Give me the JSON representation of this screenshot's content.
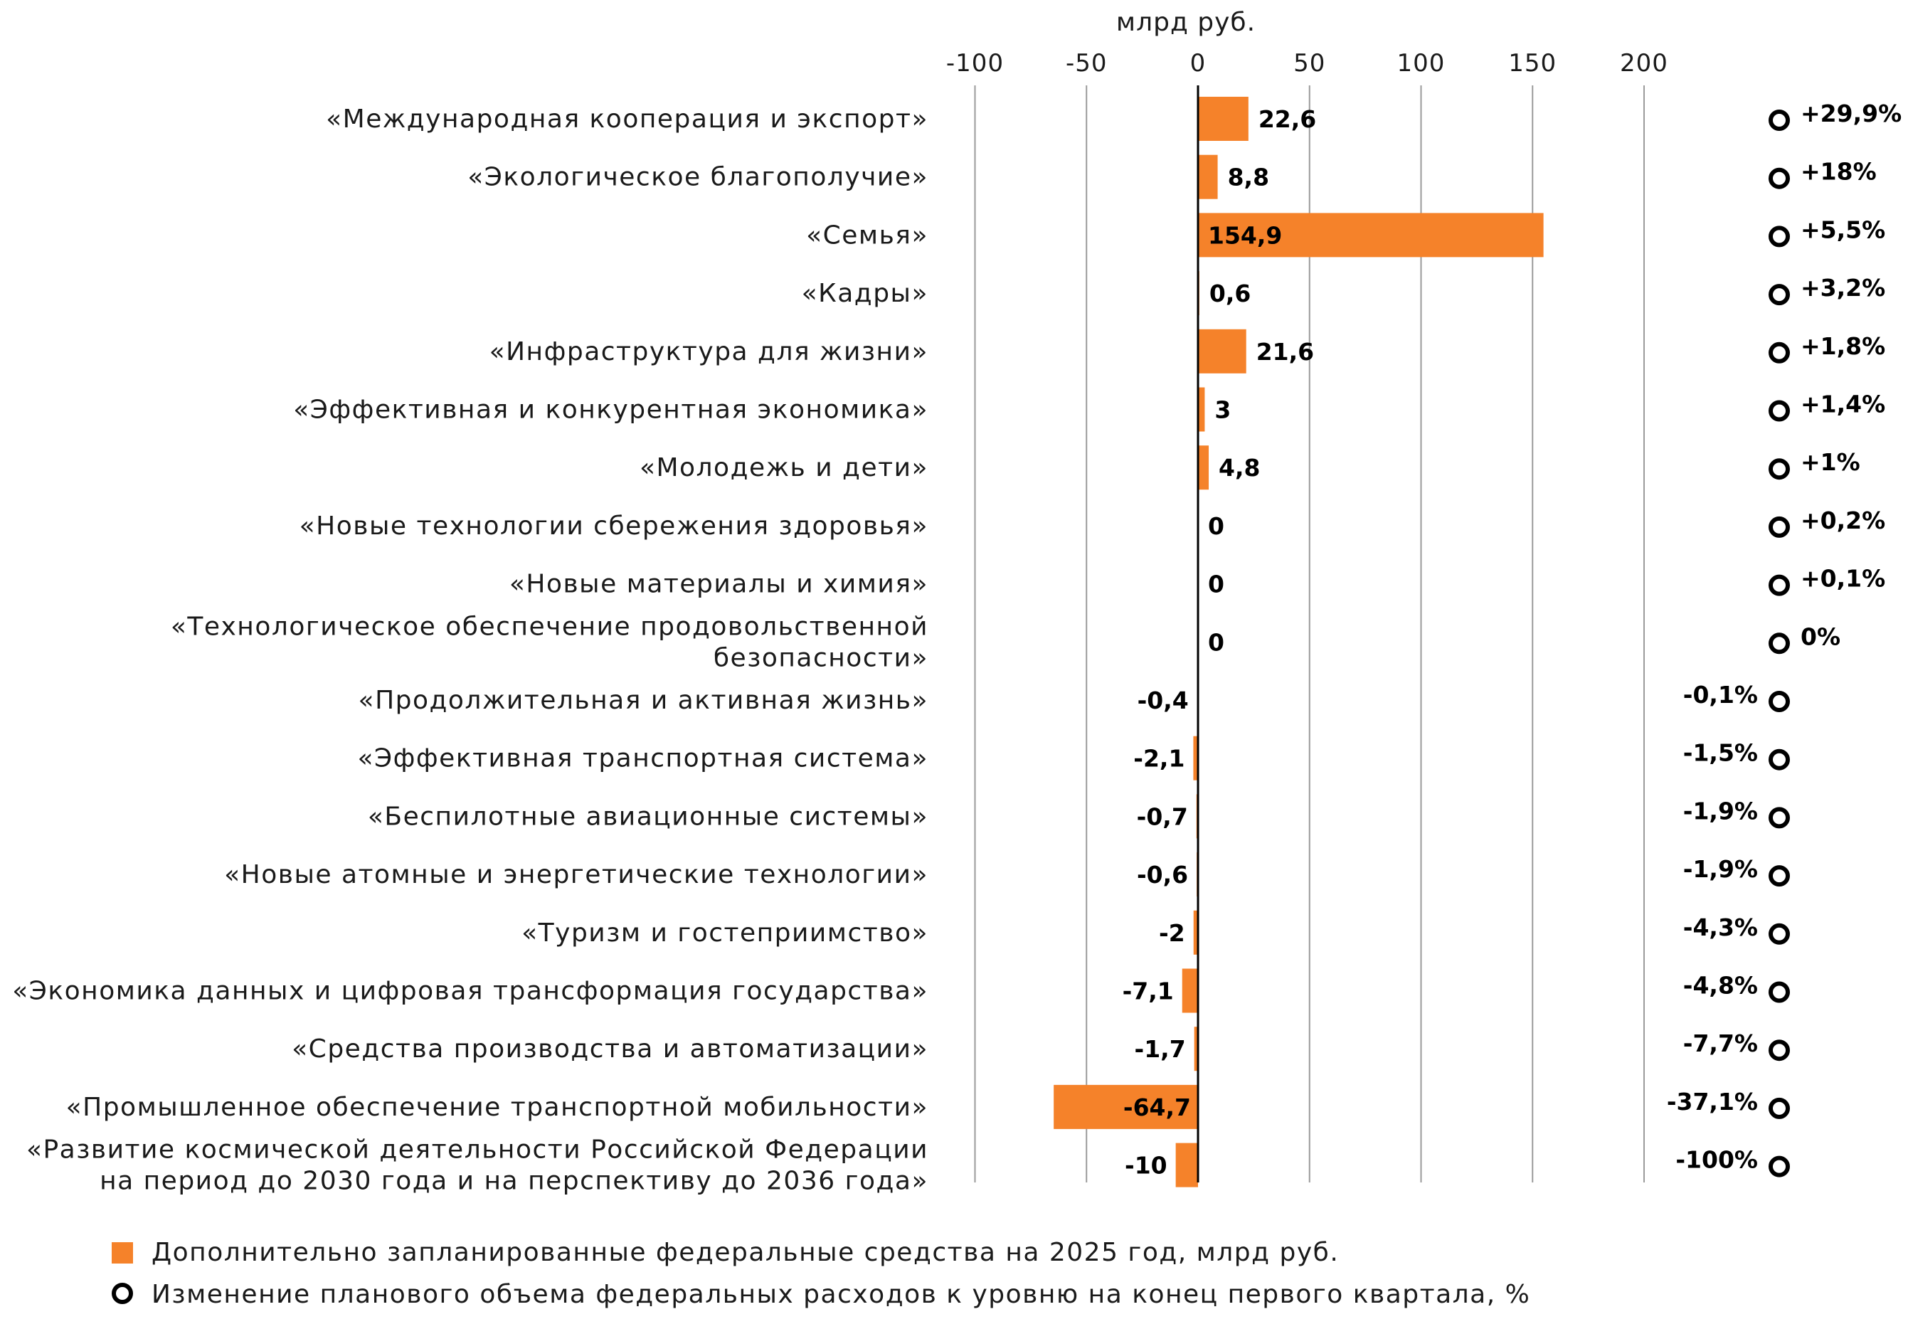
{
  "colors": {
    "bar": "#f5822a",
    "grid": "#9a9a9a",
    "axis": "#000000",
    "text": "#1a1a1a"
  },
  "chart_data": {
    "type": "bar",
    "orientation": "horizontal",
    "unit_label": "млрд руб.",
    "xlim": [
      -100,
      200
    ],
    "xticks": [
      -100,
      -50,
      0,
      50,
      100,
      150,
      200
    ],
    "grid": true,
    "categories": [
      [
        "«Международная кооперация и экспорт»"
      ],
      [
        "«Экологическое благополучие»"
      ],
      [
        "«Семья»"
      ],
      [
        "«Кадры»"
      ],
      [
        "«Инфраструктура для жизни»"
      ],
      [
        "«Эффективная и конкурентная экономика»"
      ],
      [
        "«Молодежь и дети»"
      ],
      [
        "«Новые технологии сбережения здоровья»"
      ],
      [
        "«Новые материалы и химия»"
      ],
      [
        "«Технологическое обеспечение продовольственной",
        "безопасности»"
      ],
      [
        "«Продолжительная и активная жизнь»"
      ],
      [
        "«Эффективная транспортная система»"
      ],
      [
        "«Беспилотные авиационные системы»"
      ],
      [
        "«Новые атомные и энергетические технологии»"
      ],
      [
        "«Туризм и гостеприимство»"
      ],
      [
        "«Экономика данных и цифровая трансформация государства»"
      ],
      [
        "«Средства производства и автоматизации»"
      ],
      [
        "«Промышленное обеспечение транспортной мобильности»"
      ],
      [
        "«Развитие космической деятельности Российской Федерации",
        "на период до 2030 года и на перспективу до 2036 года»"
      ]
    ],
    "series": [
      {
        "name": "Дополнительно запланированные федеральные средства на 2025 год, млрд руб.",
        "values": [
          22.6,
          8.8,
          154.9,
          0.6,
          21.6,
          3,
          4.8,
          0,
          0,
          0,
          -0.4,
          -2.1,
          -0.7,
          -0.6,
          -2,
          -7.1,
          -1.7,
          -64.7,
          -10
        ],
        "labels": [
          "22,6",
          "8,8",
          "154,9",
          "0,6",
          "21,6",
          "3",
          "4,8",
          "0",
          "0",
          "0",
          "-0,4",
          "-2,1",
          "-0,7",
          "-0,6",
          "-2",
          "-7,1",
          "-1,7",
          "-64,7",
          "-10"
        ]
      },
      {
        "name": "Изменение планового объема федеральных расходов к уровню на конец первого квартала, %",
        "values": [
          29.9,
          18,
          5.5,
          3.2,
          1.8,
          1.4,
          1,
          0.2,
          0.1,
          0,
          -0.1,
          -1.5,
          -1.9,
          -1.9,
          -4.3,
          -4.8,
          -7.7,
          -37.1,
          -100
        ],
        "labels": [
          "+29,9%",
          "+18%",
          "+5,5%",
          "+3,2%",
          "+1,8%",
          "+1,4%",
          "+1%",
          "+0,2%",
          "+0,1%",
          "0%",
          "-0,1%",
          "-1,5%",
          "-1,9%",
          "-1,9%",
          "-4,3%",
          "-4,8%",
          "-7,7%",
          "-37,1%",
          "-100%"
        ]
      }
    ],
    "legend": {
      "position": "bottom-left",
      "items": [
        {
          "marker": "square",
          "label": "Дополнительно запланированные федеральные средства на 2025 год, млрд руб."
        },
        {
          "marker": "circle",
          "label": "Изменение планового объема федеральных расходов к уровню на конец первого квартала, %"
        }
      ]
    }
  }
}
